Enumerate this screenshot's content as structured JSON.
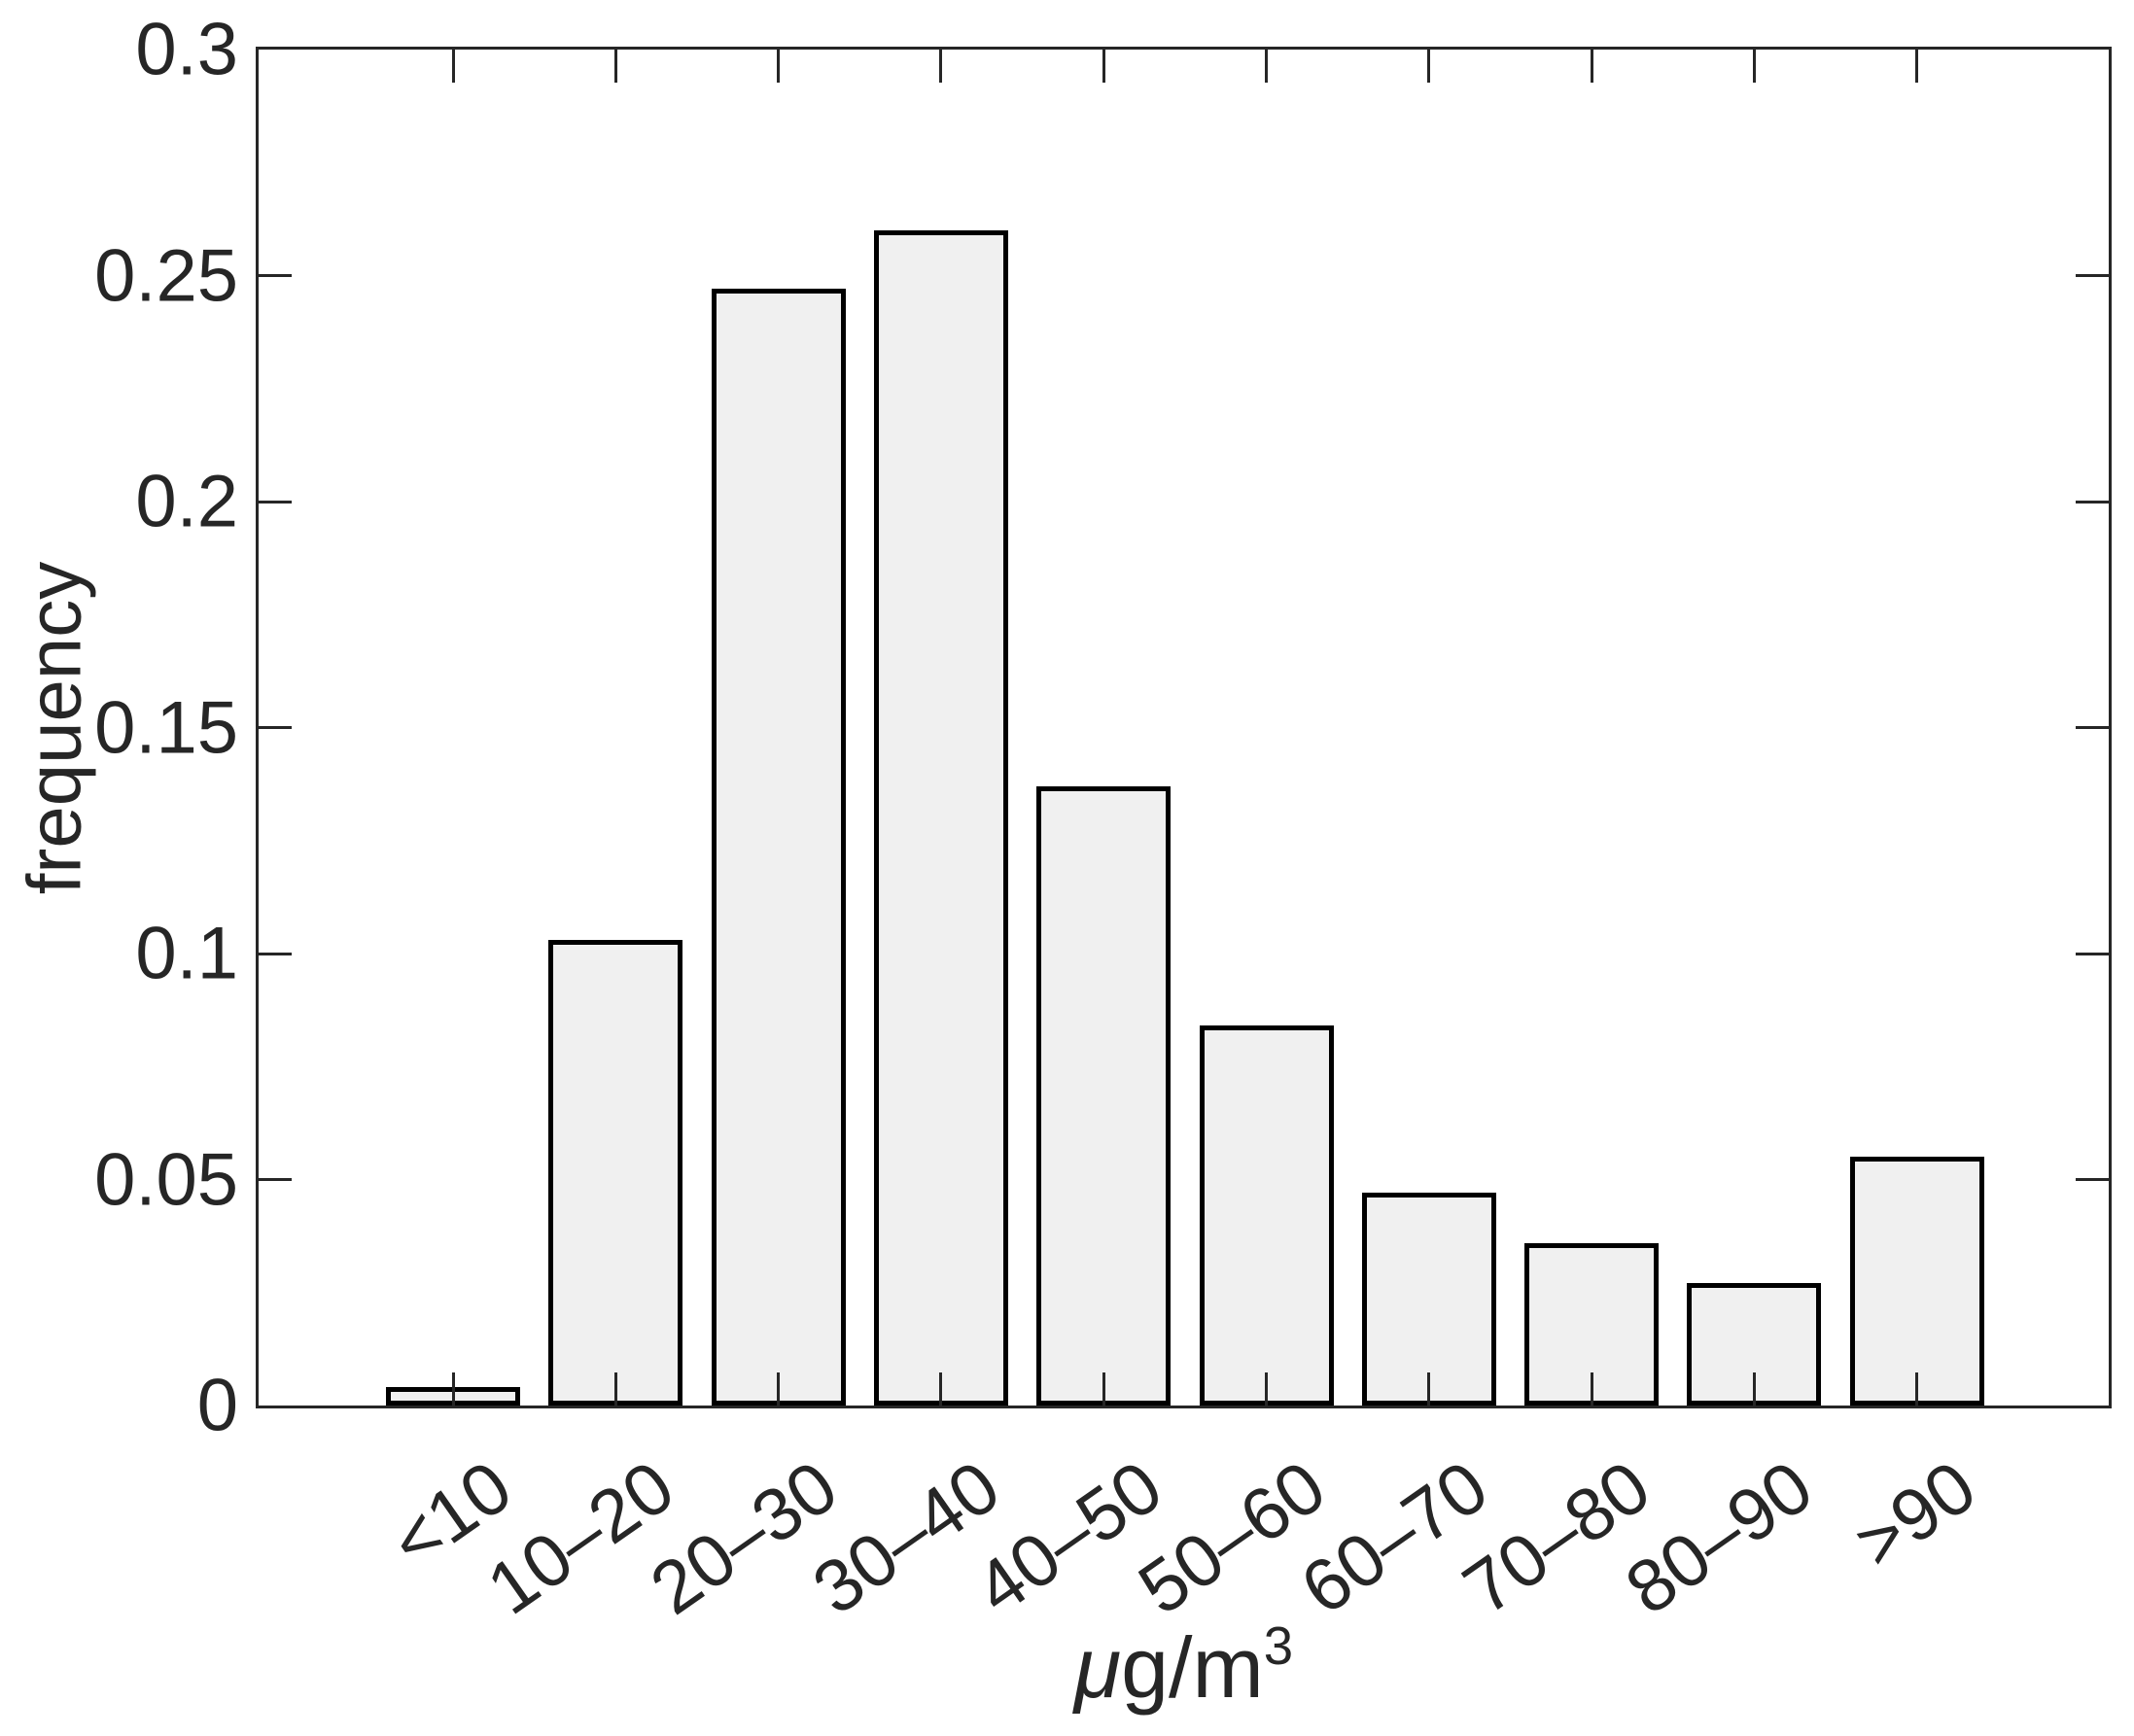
{
  "chart_data": {
    "type": "bar",
    "title": "",
    "ylabel": "frequency",
    "xlabel_mu": "μ",
    "xlabel_unit": "g/m",
    "xlabel_sup": "3",
    "categories": [
      "<10",
      "10–20",
      "20–30",
      "30–40",
      "40–50",
      "50–60",
      "60–70",
      "70–80",
      "80–90",
      ">90"
    ],
    "values": [
      0.004,
      0.103,
      0.247,
      0.26,
      0.137,
      0.084,
      0.047,
      0.036,
      0.027,
      0.055
    ],
    "ylim": [
      0,
      0.3
    ],
    "yticks": [
      0,
      0.05,
      0.1,
      0.15,
      0.2,
      0.25,
      0.3
    ],
    "ytick_labels": [
      "0",
      "0.05",
      "0.1",
      "0.15",
      "0.2",
      "0.25",
      "0.3"
    ],
    "grid": false,
    "legend": "none",
    "colors": {
      "bar_fill": "#f0f0f0",
      "bar_edge": "#000000",
      "axis": "#262626",
      "text": "#262626",
      "background": "#ffffff"
    }
  }
}
